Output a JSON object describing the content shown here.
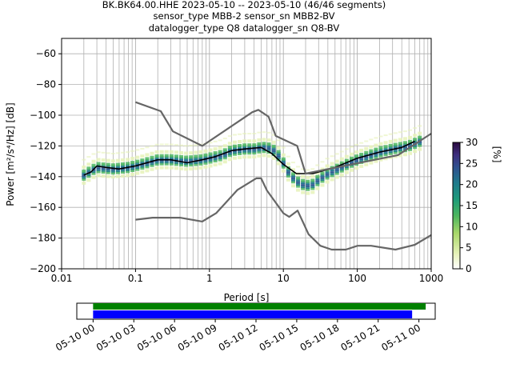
{
  "title": {
    "line1": "BK.BK64.00.HHE   2023-05-10 -- 2023-05-10  (46/46 segments)",
    "line2": "sensor_type MBB-2 sensor_sn MBB2-BV",
    "line3": "datalogger_type Q8 datalogger_sn Q8-BV"
  },
  "chart_data": [
    {
      "type": "heatmap",
      "subtype": "probabilistic power spectral density",
      "x_scale": "log",
      "xlabel": "Period [s]",
      "ylabel": "Power [m²/s⁴/Hz] [dB]",
      "xlim": [
        0.01,
        1000
      ],
      "ylim": [
        -200,
        -50
      ],
      "x_tick_labels": [
        "0.01",
        "0.1",
        "1",
        "10",
        "100",
        "1000"
      ],
      "y_ticks": [
        -200,
        -180,
        -160,
        -140,
        -120,
        -100,
        -80,
        -60
      ],
      "grid": true,
      "colorbar": {
        "label": "[%]",
        "min": 0,
        "max": 30,
        "ticks": [
          0,
          5,
          10,
          15,
          20,
          25,
          30
        ],
        "colors": [
          "#ffffff",
          "#d8ea9c",
          "#7ccb5c",
          "#22a96a",
          "#1b8a86",
          "#2c5f8f",
          "#3b2a78",
          "#2a0a3f"
        ]
      },
      "series": [
        {
          "name": "",
          "role": "mode / mean curve",
          "color": "#000000",
          "x": [
            0.02,
            0.025,
            0.03,
            0.04,
            0.06,
            0.1,
            0.2,
            0.3,
            0.5,
            0.8,
            1.2,
            2,
            3,
            5,
            7,
            10,
            15,
            25,
            50,
            100,
            200,
            400,
            600
          ],
          "y": [
            -139,
            -137,
            -133,
            -134,
            -135,
            -133,
            -129,
            -129,
            -131,
            -129,
            -127,
            -123,
            -122,
            -121,
            -125,
            -132,
            -138,
            -138,
            -134,
            -128,
            -124,
            -121,
            -117
          ]
        },
        {
          "name": "",
          "role": "new high noise model",
          "color": "#666666",
          "x": [
            0.1,
            0.22,
            0.32,
            0.8,
            3.8,
            4.6,
            6.3,
            7.9,
            15.4,
            20,
            354.8,
            1000
          ],
          "y": [
            -91.5,
            -97.4,
            -110.5,
            -120,
            -98,
            -96.5,
            -101,
            -113.5,
            -120,
            -138,
            -126,
            -112
          ]
        },
        {
          "name": "",
          "role": "new low noise model",
          "color": "#666666",
          "x": [
            0.1,
            0.17,
            0.4,
            0.8,
            1.24,
            2.4,
            4.3,
            5,
            6,
            10,
            12,
            15.6,
            21.9,
            31.6,
            45,
            70,
            101,
            154,
            328,
            600,
            1000
          ],
          "y": [
            -168,
            -166.7,
            -166.7,
            -169.2,
            -163.7,
            -148.6,
            -141.1,
            -141.1,
            -149,
            -163.8,
            -166.2,
            -162.1,
            -177.5,
            -185,
            -187.5,
            -187.5,
            -185,
            -185,
            -187.5,
            -184.4,
            -178
          ]
        }
      ],
      "density_band": {
        "x": [
          0.02,
          0.03,
          0.05,
          0.08,
          0.12,
          0.2,
          0.3,
          0.5,
          0.8,
          1,
          1.5,
          2,
          3,
          4,
          5,
          6,
          7,
          8,
          10,
          12,
          15,
          20,
          25,
          30,
          40,
          60,
          80,
          100,
          150,
          200,
          300,
          500,
          700
        ],
        "y": [
          -139,
          -134,
          -135,
          -134,
          -132,
          -129,
          -129,
          -130,
          -129,
          -128,
          -126,
          -123,
          -122,
          -122,
          -121,
          -121,
          -122,
          -124,
          -131,
          -138,
          -143,
          -146,
          -145,
          -142,
          -138,
          -134,
          -131,
          -129,
          -126,
          -124,
          -122,
          -120,
          -117
        ]
      }
    },
    {
      "type": "bar",
      "subtype": "data availability timeline",
      "x_tick_labels": [
        "05-10 00",
        "05-10 03",
        "05-10 06",
        "05-10 09",
        "05-10 12",
        "05-10 15",
        "05-10 18",
        "05-10 21",
        "05-11 00"
      ],
      "xlim_hours": [
        -1.2,
        25.2
      ],
      "series": [
        {
          "name": "",
          "role": "data present",
          "color": "#008000",
          "start_hour": 0,
          "end_hour": 24.5
        },
        {
          "name": "",
          "role": "psd used",
          "color": "#0000ff",
          "start_hour": 0,
          "end_hour": 23.5
        }
      ]
    }
  ]
}
